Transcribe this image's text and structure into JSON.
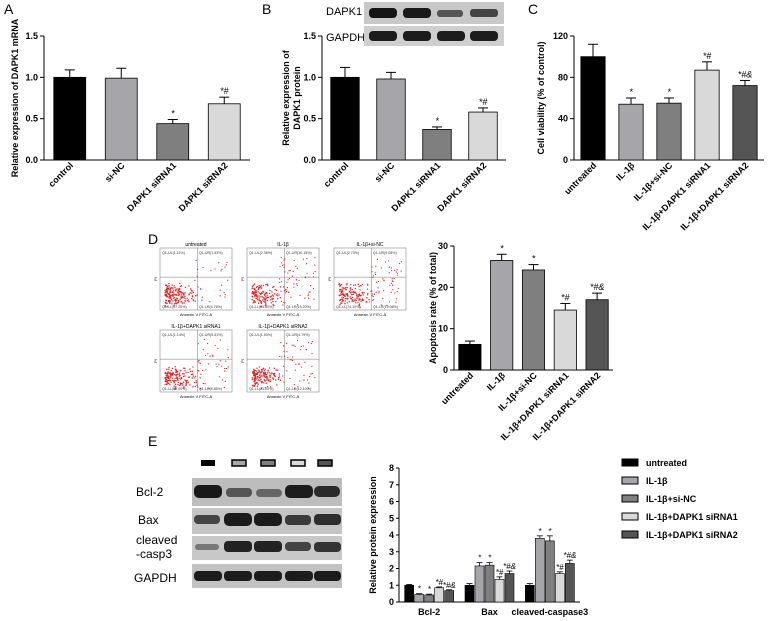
{
  "panel_letters": [
    "A",
    "B",
    "C",
    "D",
    "E"
  ],
  "colors": {
    "black": "#000000",
    "gray_light": "#a6a6aa",
    "gray_mid": "#7f7f7f",
    "gray_pale": "#d9d9d9",
    "gray_dark": "#555555",
    "flow_dot": "#e02020"
  },
  "chart_data": [
    {
      "id": "A",
      "type": "bar",
      "ylabel": "Relative expression of DAPK1 mRNA",
      "categories": [
        "control",
        "si-NC",
        "DAPK1 siRNA1",
        "DAPK1 siRNA2"
      ],
      "values": [
        1.0,
        0.99,
        0.44,
        0.68
      ],
      "errors": [
        0.09,
        0.12,
        0.05,
        0.08
      ],
      "annotations": [
        "",
        "",
        "*",
        "*#"
      ],
      "ylim": [
        0,
        1.5
      ],
      "yticks": [
        "0.0",
        "0.5",
        "1.0",
        "1.5"
      ]
    },
    {
      "id": "B",
      "type": "bar",
      "ylabel": "Relative expression of\nDAPK1 protein",
      "blot_labels": [
        "DAPK1",
        "GAPDH"
      ],
      "categories": [
        "control",
        "si-NC",
        "DAPK1 siRNA1",
        "DAPK1 siRNA2"
      ],
      "values": [
        1.0,
        0.98,
        0.37,
        0.58
      ],
      "errors": [
        0.12,
        0.08,
        0.03,
        0.05
      ],
      "annotations": [
        "",
        "",
        "*",
        "*#"
      ],
      "ylim": [
        0,
        1.5
      ],
      "yticks": [
        "0.0",
        "0.5",
        "1.0",
        "1.5"
      ]
    },
    {
      "id": "C",
      "type": "bar",
      "ylabel": "Cell viability (% of control)",
      "categories": [
        "untreated",
        "IL-1β",
        "IL-1β+si-NC",
        "IL-1β+DAPK1 siRNA1",
        "IL-1β+DAPK1 siRNA2"
      ],
      "values": [
        100,
        54,
        55,
        87,
        72
      ],
      "errors": [
        12,
        6,
        5,
        8,
        5
      ],
      "annotations": [
        "",
        "*",
        "*",
        "*#",
        "*#&"
      ],
      "ylim": [
        0,
        120
      ],
      "yticks": [
        "0",
        "40",
        "80",
        "120"
      ]
    },
    {
      "id": "D",
      "type": "bar",
      "ylabel": "Apoptosis rate (% of total)",
      "flow_titles": [
        "untreated",
        "IL-1β",
        "IL-1β+si-NC",
        "IL-1β+DAPK1 siRNA1",
        "IL-1β+DAPK1 siRNA2"
      ],
      "flow_xlabel": "Annexin V FITC-A",
      "flow_ylabel": "PI",
      "flow_quadrants": [
        [
          "Q1-UL(1.11%)",
          "Q1-UR(1.53%)",
          "Q1-LL(97.20%)",
          "Q1-LR(4.76%)"
        ],
        [
          "Q1-UL(2.36%)",
          "Q1-UR(10.15%)",
          "Q1-LL(71.80%)",
          "Q1-LR(15.20%)"
        ],
        [
          "Q1-UL(2.73%)",
          "Q1-UR(9.08%)",
          "Q1-LL(74.10%)",
          "Q1-LR(15.08%)"
        ],
        [
          "Q1-UL(1.14%)",
          "Q1-UR(5.51%)",
          "Q1-LL(85.00%)",
          "Q1-LR(8.85%)"
        ],
        [
          "Q1-UL(1.50%)",
          "Q1-UR(4.79%)",
          "Q1-LL(81.20%)",
          "Q1-LR(12.10%)"
        ]
      ],
      "categories": [
        "untreated",
        "IL-1β",
        "IL-1β+si-NC",
        "IL-1β+DAPK1 siRNA1",
        "IL-1β+DAPK1 siRNA2"
      ],
      "values": [
        6.2,
        26.5,
        24.2,
        14.5,
        17.0
      ],
      "errors": [
        0.8,
        1.5,
        1.3,
        1.6,
        1.6
      ],
      "annotations": [
        "",
        "*",
        "*",
        "*#",
        "*#&"
      ],
      "ylim": [
        0,
        30
      ],
      "yticks": [
        "0",
        "10",
        "20",
        "30"
      ]
    },
    {
      "id": "E",
      "type": "bar",
      "ylabel": "Relative protein expression",
      "blot_labels": [
        "Bcl-2",
        "Bax",
        "cleaved\n-casp3",
        "GAPDH"
      ],
      "categories": [
        "Bcl-2",
        "Bax",
        "cleaved-caspase3"
      ],
      "legend": [
        "untreated",
        "IL-1β",
        "IL-1β+si-NC",
        "IL-1β+DAPK1 siRNA1",
        "IL-1β+DAPK1 siRNA2"
      ],
      "series": [
        {
          "name": "untreated",
          "values": [
            1.0,
            1.0,
            1.0
          ],
          "errors": [
            0.05,
            0.1,
            0.1
          ]
        },
        {
          "name": "IL-1β",
          "values": [
            0.45,
            2.15,
            3.8
          ],
          "errors": [
            0.05,
            0.2,
            0.15
          ]
        },
        {
          "name": "IL-1β+si-NC",
          "values": [
            0.42,
            2.2,
            3.65
          ],
          "errors": [
            0.05,
            0.15,
            0.3
          ]
        },
        {
          "name": "IL-1β+DAPK1 siRNA1",
          "values": [
            0.85,
            1.35,
            1.7
          ],
          "errors": [
            0.05,
            0.15,
            0.1
          ]
        },
        {
          "name": "IL-1β+DAPK1 siRNA2",
          "values": [
            0.68,
            1.7,
            2.3
          ],
          "errors": [
            0.05,
            0.15,
            0.2
          ]
        }
      ],
      "annotations": [
        [
          "",
          "*",
          "*",
          "*#",
          "*#&"
        ],
        [
          "",
          "*",
          "*",
          "*#",
          "*#&"
        ],
        [
          "",
          "*",
          "*",
          "*#",
          "*#&"
        ]
      ],
      "ylim": [
        0,
        8
      ],
      "yticks": [
        "0",
        "1",
        "2",
        "3",
        "4",
        "5",
        "6",
        "7",
        "8"
      ]
    }
  ]
}
